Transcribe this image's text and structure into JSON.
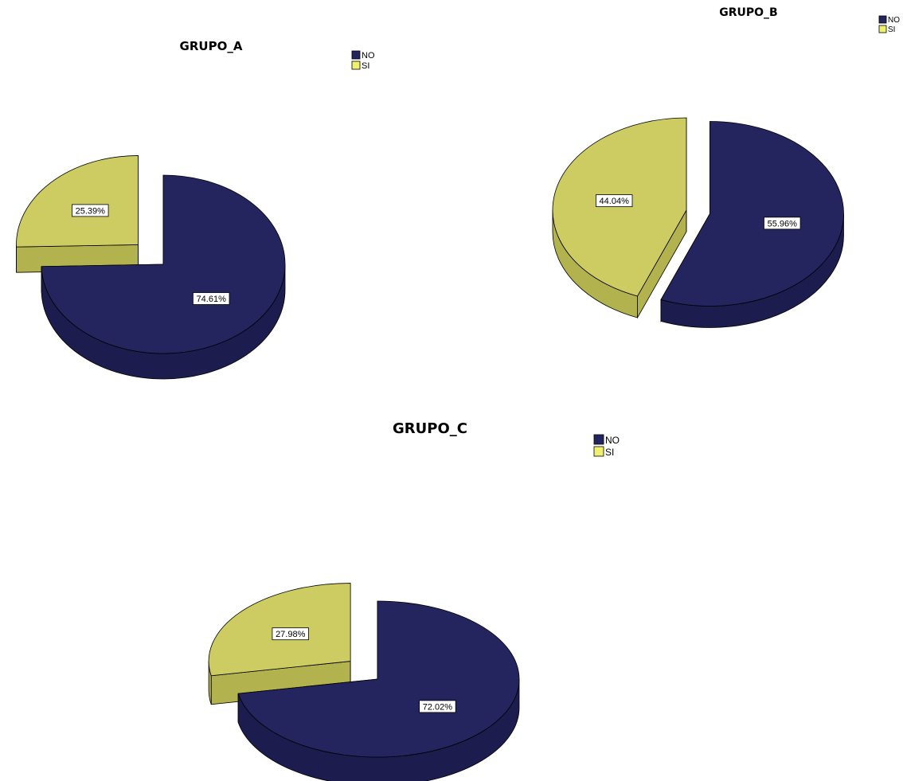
{
  "chart_data": [
    {
      "type": "pie",
      "style": "3d-exploded",
      "title": "GRUPO_A",
      "legend_position": "top-right",
      "categories": [
        "NO",
        "SI"
      ],
      "values": [
        74.61,
        25.39
      ],
      "labels": [
        "74.61%",
        "25.39%"
      ]
    },
    {
      "type": "pie",
      "style": "3d-exploded",
      "title": "GRUPO_B",
      "legend_position": "top-right",
      "categories": [
        "NO",
        "SI"
      ],
      "values": [
        55.96,
        44.04
      ],
      "labels": [
        "55.96%",
        "44.04%"
      ]
    },
    {
      "type": "pie",
      "style": "3d-exploded",
      "title": "GRUPO_C",
      "legend_position": "top-right",
      "categories": [
        "NO",
        "SI"
      ],
      "values": [
        72.02,
        27.98
      ],
      "labels": [
        "72.02%",
        "27.98%"
      ]
    }
  ],
  "colors": {
    "NO": "#24245e",
    "NO_side": "#1c1c4e",
    "SI": "#cccc62",
    "SI_side": "#b2b24e",
    "SI_legend": "#f0f070"
  }
}
